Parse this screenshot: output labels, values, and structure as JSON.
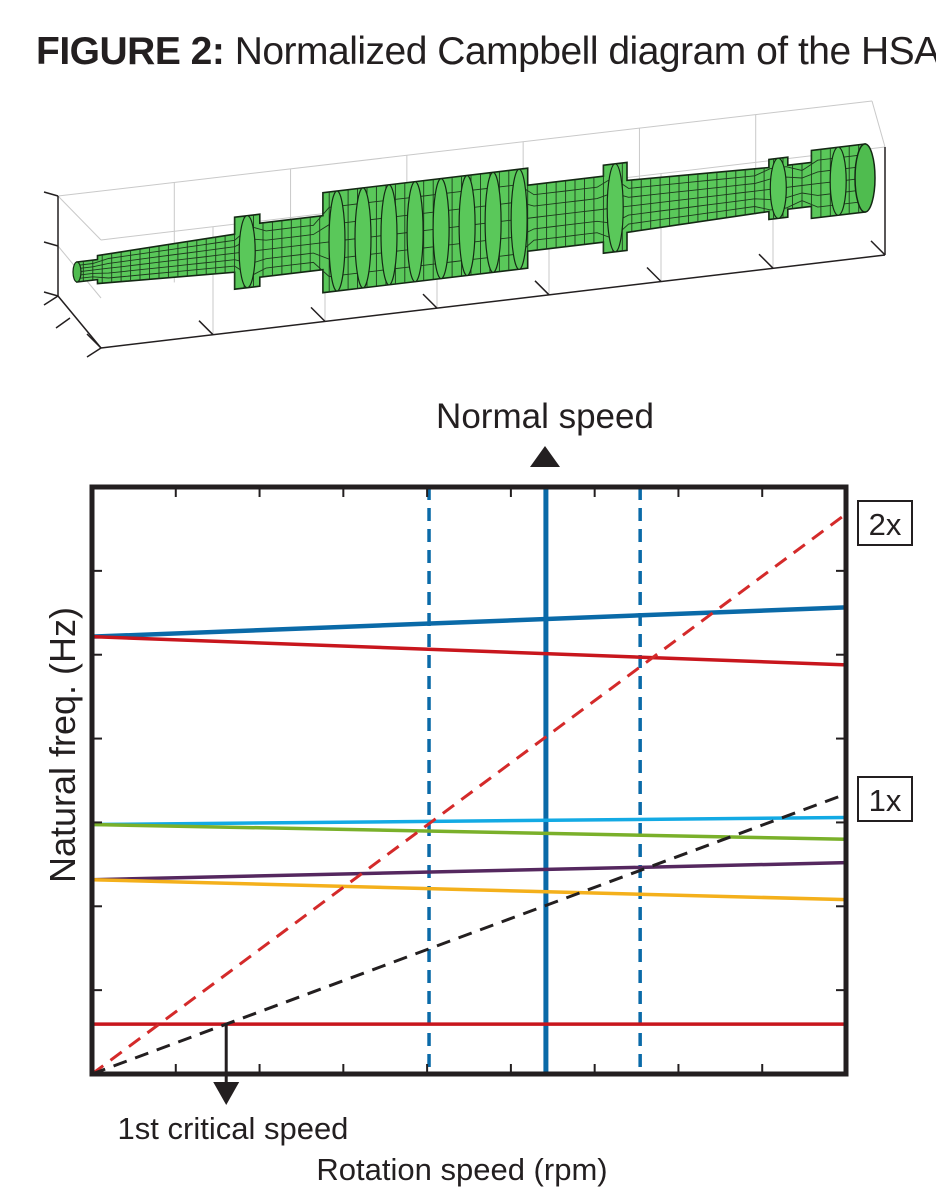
{
  "figure": {
    "title_prefix": "FIGURE 2:",
    "title_text": "Normalized Campbell diagram of the HSAT"
  },
  "chart_data": {
    "type": "line",
    "title": "",
    "xlabel": "Rotation speed (rpm)",
    "ylabel": "Natural freq. (Hz)",
    "xlim": [
      0,
      1
    ],
    "ylim": [
      0,
      1
    ],
    "grid": false,
    "tick_labels_shown": false,
    "series": [
      {
        "color": "#0a6aa8",
        "x": [
          0,
          1
        ],
        "y": [
          0.745,
          0.795
        ]
      },
      {
        "color": "#c8161d",
        "x": [
          0,
          1
        ],
        "y": [
          0.745,
          0.697
        ]
      },
      {
        "color": "#13aae4",
        "x": [
          0,
          1
        ],
        "y": [
          0.425,
          0.437
        ]
      },
      {
        "color": "#7ab02a",
        "x": [
          0,
          1
        ],
        "y": [
          0.425,
          0.4
        ]
      },
      {
        "color": "#55285f",
        "x": [
          0,
          1
        ],
        "y": [
          0.331,
          0.36
        ]
      },
      {
        "color": "#f4b01b",
        "x": [
          0,
          1
        ],
        "y": [
          0.331,
          0.297
        ]
      },
      {
        "color": "#c8161d",
        "x": [
          0,
          1
        ],
        "y": [
          0.085,
          0.085
        ]
      }
    ],
    "excitation_lines": [
      {
        "name": "2x",
        "color": "#d42a2a",
        "x": [
          0,
          1
        ],
        "y": [
          0,
          0.954
        ]
      },
      {
        "name": "1x",
        "color": "#231f20",
        "x": [
          0,
          1
        ],
        "y": [
          0,
          0.477
        ]
      }
    ],
    "vertical_markers": [
      {
        "x": 0.447,
        "style": "dashed",
        "color": "#0a6aa8"
      },
      {
        "x": 0.602,
        "style": "solid",
        "color": "#0a6aa8"
      },
      {
        "x": 0.727,
        "style": "dashed",
        "color": "#0a6aa8"
      }
    ],
    "annotations": {
      "normal_speed": "Normal speed",
      "first_critical": "1st critical speed",
      "normal_speed_x": 0.602,
      "first_critical_x": 0.178
    }
  },
  "colors": {
    "rotor_fill": "#5ac85a",
    "frame": "#231f20"
  }
}
